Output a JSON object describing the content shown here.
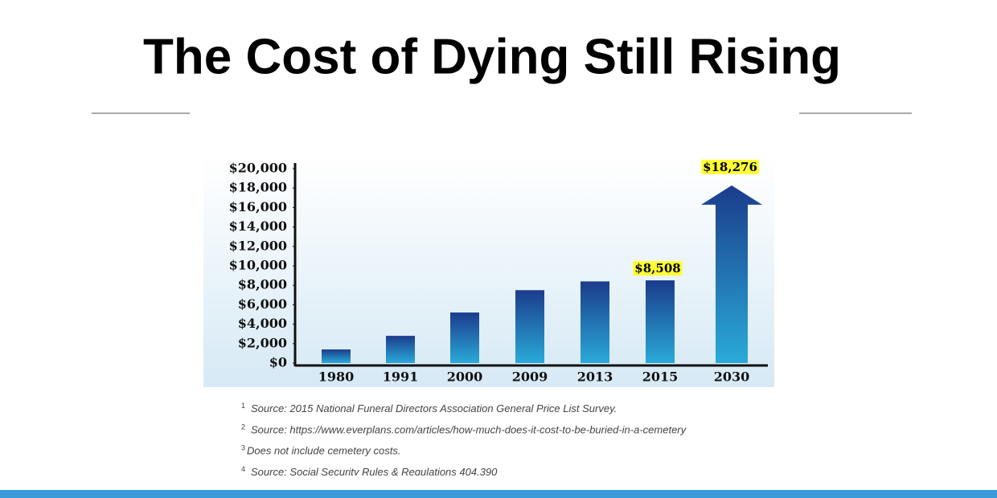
{
  "chart_data": {
    "type": "bar",
    "title": "The Cost of Dying Still Rising",
    "categories": [
      "1980",
      "1991",
      "2000",
      "2009",
      "2013",
      "2015",
      "2030"
    ],
    "values": [
      1400,
      2800,
      5200,
      7500,
      8400,
      8508,
      18276
    ],
    "value_labels": [
      null,
      null,
      null,
      null,
      null,
      "$8,508",
      "$18,276"
    ],
    "color": "#1f5fa8",
    "ylim": [
      0,
      20000
    ],
    "yticks": [
      {
        "value": 0,
        "label": "$0"
      },
      {
        "value": 2000,
        "label": "$2,000"
      },
      {
        "value": 4000,
        "label": "$4,000"
      },
      {
        "value": 6000,
        "label": "$6,000"
      },
      {
        "value": 8000,
        "label": "$8,000"
      },
      {
        "value": 10000,
        "label": "$10,000"
      },
      {
        "value": 12000,
        "label": "$12,000"
      },
      {
        "value": 14000,
        "label": "$14,000"
      },
      {
        "value": 16000,
        "label": "$16,000"
      },
      {
        "value": 18000,
        "label": "$18,000"
      },
      {
        "value": 20000,
        "label": "$20,000"
      }
    ]
  },
  "footnotes": [
    {
      "mark": "1",
      "text": "Source: 2015 National Funeral Directors Association General Price List Survey."
    },
    {
      "mark": "2",
      "text": "Source: https://www.everplans.com/articles/how-much-does-it-cost-to-be-buried-in-a-cemetery"
    },
    {
      "mark": "3",
      "text": "Does not include cemetery costs."
    },
    {
      "mark": "4",
      "text": "Source: Social Security Rules & Regulations 404.390"
    }
  ]
}
